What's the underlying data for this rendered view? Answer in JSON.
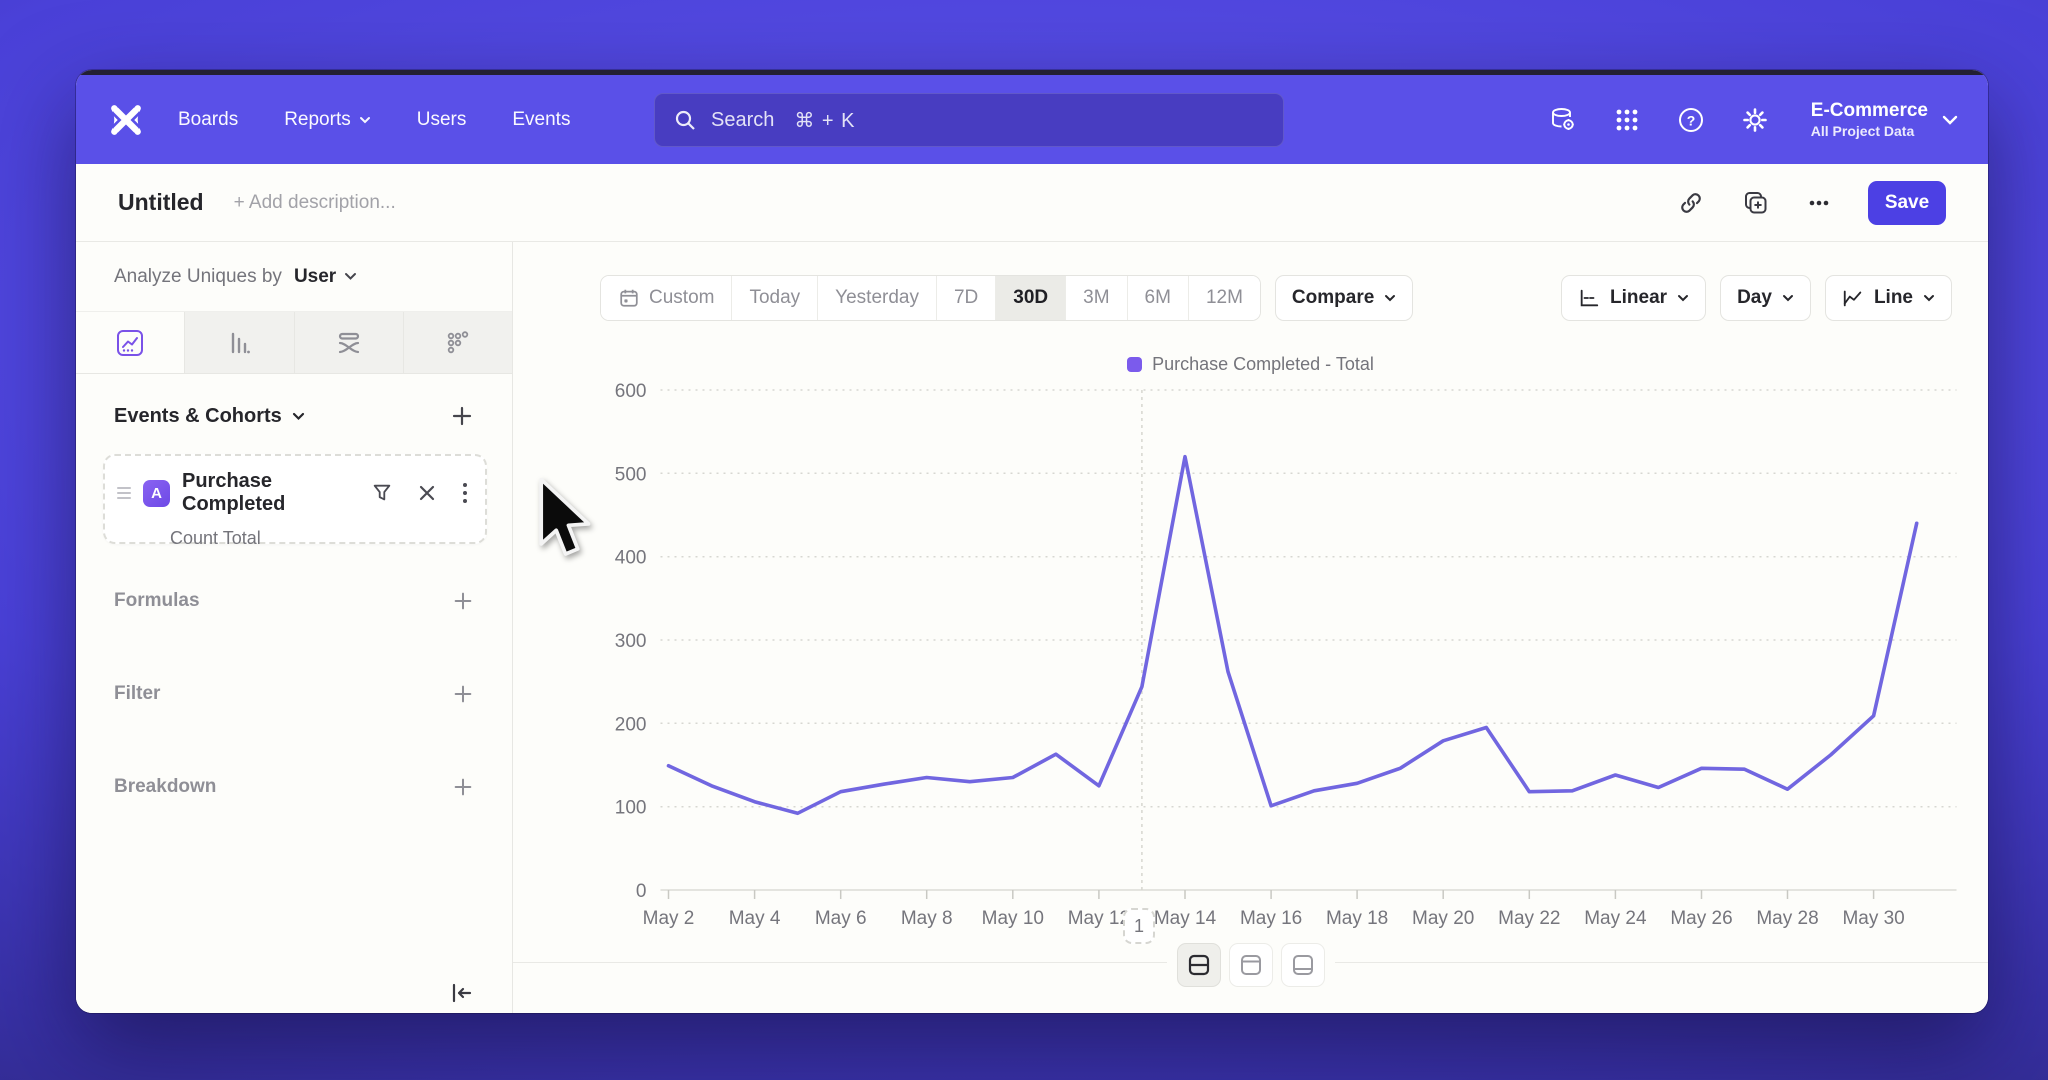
{
  "app": {
    "brand_color": "#5a50e8",
    "accent_color": "#4c40e4",
    "legend_swatch_color": "#7b5bec"
  },
  "topnav": {
    "items": [
      {
        "label": "Boards",
        "has_chevron": false
      },
      {
        "label": "Reports",
        "has_chevron": true
      },
      {
        "label": "Users",
        "has_chevron": false
      },
      {
        "label": "Events",
        "has_chevron": false
      }
    ],
    "search": {
      "label": "Search",
      "shortcut": "⌘ + K"
    },
    "project": {
      "name": "E-Commerce",
      "scope": "All Project Data"
    }
  },
  "toolbar": {
    "title": "Untitled",
    "description_placeholder": "+ Add description...",
    "save_label": "Save"
  },
  "sidebar": {
    "analyze": {
      "prefix": "Analyze Uniques by",
      "value": "User"
    },
    "tabs": [
      "insights",
      "bar",
      "flows",
      "retention"
    ],
    "active_tab": 0,
    "events_header": "Events & Cohorts",
    "event_card": {
      "badge": "A",
      "title": "Purchase Completed",
      "subtitle": "Count Total"
    },
    "sections": [
      {
        "label": "Formulas"
      },
      {
        "label": "Filter"
      },
      {
        "label": "Breakdown"
      }
    ]
  },
  "chart_toolbar": {
    "ranges": [
      {
        "label": "Custom",
        "icon": "calendar",
        "active": false
      },
      {
        "label": "Today",
        "active": false
      },
      {
        "label": "Yesterday",
        "active": false
      },
      {
        "label": "7D",
        "active": false
      },
      {
        "label": "30D",
        "active": true
      },
      {
        "label": "3M",
        "active": false
      },
      {
        "label": "6M",
        "active": false
      },
      {
        "label": "12M",
        "active": false
      }
    ],
    "compare_label": "Compare",
    "scale_label": "Linear",
    "interval_label": "Day",
    "chart_type_label": "Line"
  },
  "chart_data": {
    "type": "line",
    "x": [
      "May 2",
      "May 3",
      "May 4",
      "May 5",
      "May 6",
      "May 7",
      "May 8",
      "May 9",
      "May 10",
      "May 11",
      "May 12",
      "May 13",
      "May 14",
      "May 15",
      "May 16",
      "May 17",
      "May 18",
      "May 19",
      "May 20",
      "May 21",
      "May 22",
      "May 23",
      "May 24",
      "May 25",
      "May 26",
      "May 27",
      "May 28",
      "May 29",
      "May 30",
      "May 31"
    ],
    "x_tick_indices": [
      0,
      2,
      4,
      6,
      8,
      10,
      12,
      14,
      16,
      18,
      20,
      22,
      24,
      26,
      28
    ],
    "series": [
      {
        "name": "Purchase Completed - Total",
        "color": "#7166e0",
        "values": [
          149,
          125,
          106,
          92,
          118,
          127,
          135,
          130,
          135,
          163,
          125,
          244,
          520,
          262,
          101,
          119,
          128,
          146,
          179,
          195,
          118,
          119,
          138,
          123,
          146,
          145,
          121,
          162,
          209,
          440
        ]
      }
    ],
    "ylim": [
      0,
      600
    ],
    "yticks": [
      0,
      100,
      200,
      300,
      400,
      500,
      600
    ],
    "vline_index": 11,
    "grid": "horizontal-dotted",
    "legend_position": "top-center"
  },
  "footer": {
    "page": "1",
    "layouts": [
      {
        "name": "split-horizontal",
        "active": true
      },
      {
        "name": "panel-top",
        "active": false
      },
      {
        "name": "panel-bottom",
        "active": false
      }
    ]
  }
}
